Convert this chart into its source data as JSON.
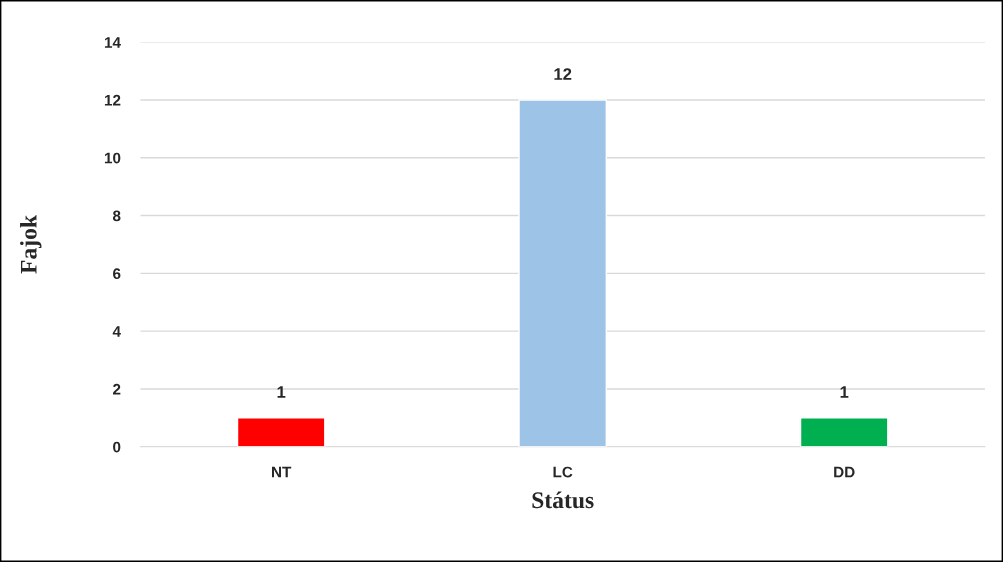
{
  "chart_data": {
    "type": "bar",
    "xlabel": "Státus",
    "ylabel": "Fajok",
    "categories": [
      "NT",
      "LC",
      "DD"
    ],
    "values": [
      1,
      12,
      1
    ],
    "colors": [
      "#ff0000",
      "#9dc3e6",
      "#00b050"
    ],
    "ylim": [
      0,
      14
    ],
    "yticks": [
      0,
      2,
      4,
      6,
      8,
      10,
      12,
      14
    ],
    "grid": "y",
    "data_labels": true
  }
}
